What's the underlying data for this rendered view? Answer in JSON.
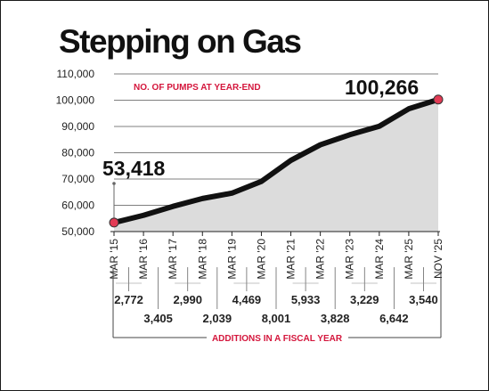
{
  "title": "Stepping on Gas",
  "colors": {
    "line": "#111111",
    "area": "#dcdcdc",
    "marker": "#e23b55",
    "label_accent": "#d4163c",
    "grid": "#555555"
  },
  "chart_data": {
    "type": "area",
    "title": "Stepping on Gas",
    "subtitle": "NO. OF PUMPS AT YEAR-END",
    "categories": [
      "MAR '15",
      "MAR '16",
      "MAR '17",
      "MAR '18",
      "MAR '19",
      "MAR '20",
      "MAR '21",
      "MAR '22",
      "MAR '23",
      "MAR '24",
      "MAR '25",
      "NOV '25"
    ],
    "series": [
      {
        "name": "NO. OF PUMPS AT YEAR-END",
        "values": [
          53418,
          56190,
          59595,
          62585,
          64624,
          69093,
          77094,
          83027,
          86855,
          90084,
          96726,
          100266
        ]
      }
    ],
    "y_ticks": [
      "50,000",
      "60,000",
      "70,000",
      "80,000",
      "90,000",
      "100,000",
      "110,000"
    ],
    "ylim": [
      50000,
      110000
    ],
    "grid": "horizontal",
    "annotations": [
      {
        "category": "MAR '15",
        "text": "53,418"
      },
      {
        "category": "NOV '25",
        "text": "100,266"
      }
    ],
    "additions_label": "ADDITIONS IN A FISCAL YEAR",
    "additions": [
      "2,772",
      "3,405",
      "2,990",
      "2,039",
      "4,469",
      "8,001",
      "5,933",
      "3,828",
      "3,229",
      "6,642",
      "3,540"
    ]
  }
}
